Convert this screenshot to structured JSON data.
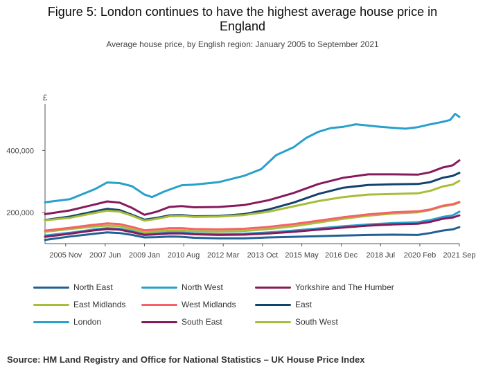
{
  "title_line1": "Figure 5: London continues to have the highest average house price in",
  "title_line2": "England",
  "subtitle": "Average house price, by English region: January 2005 to September 2021",
  "source": "Source: HM Land Registry and Office for National Statistics – UK House Price Index",
  "chart_data": {
    "type": "line",
    "ylabel": "£",
    "ylim": [
      100000,
      550000
    ],
    "y_ticks": [
      200000,
      400000
    ],
    "y_tick_labels": [
      "200,000",
      "400,000"
    ],
    "x_ticks": [
      "2005 Nov",
      "2007 Jun",
      "2009 Jan",
      "2010 Aug",
      "2012 Mar",
      "2013 Oct",
      "2015 May",
      "2016 Dec",
      "2018 Jul",
      "2020 Feb",
      "2021 Sep"
    ],
    "x_tick_values": [
      2005.83,
      2007.42,
      2009.0,
      2010.58,
      2012.17,
      2013.75,
      2015.33,
      2016.92,
      2018.5,
      2020.08,
      2021.67
    ],
    "xlim": [
      2005.0,
      2021.67
    ],
    "grid": false,
    "legend_position": "bottom",
    "series": [
      {
        "name": "North East",
        "color": "#206095",
        "x": [
          2005.0,
          2006.0,
          2007.0,
          2007.5,
          2008.0,
          2008.5,
          2009.0,
          2009.5,
          2010.0,
          2010.5,
          2011.0,
          2012.0,
          2013.0,
          2014.0,
          2015.0,
          2016.0,
          2017.0,
          2018.0,
          2019.0,
          2020.0,
          2020.5,
          2021.0,
          2021.4,
          2021.67
        ],
        "values": [
          112000,
          123000,
          132000,
          136000,
          134000,
          128000,
          120000,
          121000,
          123000,
          122000,
          119000,
          117000,
          117000,
          120000,
          122000,
          124000,
          126000,
          128000,
          129000,
          128000,
          134000,
          142000,
          146000,
          153000
        ]
      },
      {
        "name": "North West",
        "color": "#27a0cc",
        "x": [
          2005.0,
          2006.0,
          2007.0,
          2007.5,
          2008.0,
          2008.5,
          2009.0,
          2009.5,
          2010.0,
          2010.5,
          2011.0,
          2012.0,
          2013.0,
          2014.0,
          2015.0,
          2016.0,
          2017.0,
          2018.0,
          2019.0,
          2020.0,
          2020.5,
          2021.0,
          2021.4,
          2021.67
        ],
        "values": [
          126000,
          135000,
          146000,
          150000,
          148000,
          140000,
          131000,
          133000,
          136000,
          136000,
          133000,
          131000,
          132000,
          136000,
          142000,
          149000,
          156000,
          162000,
          166000,
          169000,
          176000,
          186000,
          191000,
          203000
        ]
      },
      {
        "name": "Yorkshire and The Humber",
        "color": "#871a5b",
        "x": [
          2005.0,
          2006.0,
          2007.0,
          2007.5,
          2008.0,
          2008.5,
          2009.0,
          2009.5,
          2010.0,
          2010.5,
          2011.0,
          2012.0,
          2013.0,
          2014.0,
          2015.0,
          2016.0,
          2017.0,
          2018.0,
          2019.0,
          2020.0,
          2020.5,
          2021.0,
          2021.4,
          2021.67
        ],
        "values": [
          122000,
          132000,
          143000,
          147000,
          145000,
          137000,
          128000,
          130000,
          133000,
          133000,
          130000,
          128000,
          129000,
          133000,
          138000,
          145000,
          152000,
          158000,
          162000,
          164000,
          170000,
          180000,
          184000,
          191000
        ]
      },
      {
        "name": "East Midlands",
        "color": "#a8bd3a",
        "x": [
          2005.0,
          2006.0,
          2007.0,
          2007.5,
          2008.0,
          2008.5,
          2009.0,
          2009.5,
          2010.0,
          2010.5,
          2011.0,
          2012.0,
          2013.0,
          2014.0,
          2015.0,
          2016.0,
          2017.0,
          2018.0,
          2019.0,
          2020.0,
          2020.5,
          2021.0,
          2021.4,
          2021.67
        ],
        "values": [
          138000,
          147000,
          155000,
          158000,
          156000,
          147000,
          136000,
          139000,
          143000,
          143000,
          140000,
          139000,
          141000,
          147000,
          156000,
          168000,
          180000,
          190000,
          197000,
          201000,
          208000,
          220000,
          225000,
          232000
        ]
      },
      {
        "name": "West Midlands",
        "color": "#f66068",
        "x": [
          2005.0,
          2006.0,
          2007.0,
          2007.5,
          2008.0,
          2008.5,
          2009.0,
          2009.5,
          2010.0,
          2010.5,
          2011.0,
          2012.0,
          2013.0,
          2014.0,
          2015.0,
          2016.0,
          2017.0,
          2018.0,
          2019.0,
          2020.0,
          2020.5,
          2021.0,
          2021.4,
          2021.67
        ],
        "values": [
          142000,
          151000,
          161000,
          165000,
          163000,
          154000,
          143000,
          146000,
          150000,
          150000,
          147000,
          146000,
          148000,
          154000,
          163000,
          174000,
          185000,
          194000,
          201000,
          204000,
          210000,
          222000,
          227000,
          234000
        ]
      },
      {
        "name": "East",
        "color": "#12436d",
        "x": [
          2005.0,
          2006.0,
          2007.0,
          2007.5,
          2008.0,
          2008.5,
          2009.0,
          2009.5,
          2010.0,
          2010.5,
          2011.0,
          2012.0,
          2013.0,
          2014.0,
          2015.0,
          2016.0,
          2017.0,
          2018.0,
          2019.0,
          2020.0,
          2020.5,
          2021.0,
          2021.4,
          2021.67
        ],
        "values": [
          176000,
          187000,
          204000,
          212000,
          208000,
          193000,
          177000,
          183000,
          191000,
          192000,
          188000,
          189000,
          195000,
          210000,
          232000,
          260000,
          280000,
          289000,
          291000,
          292000,
          298000,
          312000,
          318000,
          328000
        ]
      },
      {
        "name": "London",
        "color": "#28a0cc",
        "x": [
          2005.0,
          2006.0,
          2007.0,
          2007.5,
          2008.0,
          2008.5,
          2009.0,
          2009.3,
          2009.8,
          2010.5,
          2011.0,
          2012.0,
          2013.0,
          2013.7,
          2014.3,
          2015.0,
          2015.5,
          2016.0,
          2016.5,
          2017.0,
          2017.5,
          2018.0,
          2018.5,
          2019.0,
          2019.5,
          2020.0,
          2020.5,
          2021.0,
          2021.3,
          2021.5,
          2021.67
        ],
        "values": [
          233000,
          243000,
          275000,
          297000,
          295000,
          285000,
          258000,
          250000,
          268000,
          288000,
          290000,
          298000,
          318000,
          340000,
          385000,
          410000,
          440000,
          460000,
          472000,
          476000,
          484000,
          480000,
          476000,
          473000,
          470000,
          475000,
          484000,
          492000,
          498000,
          518000,
          508000
        ]
      },
      {
        "name": "South East",
        "color": "#871a5b",
        "x": [
          2005.0,
          2006.0,
          2007.0,
          2007.5,
          2008.0,
          2008.5,
          2009.0,
          2009.5,
          2010.0,
          2010.5,
          2011.0,
          2012.0,
          2013.0,
          2014.0,
          2015.0,
          2016.0,
          2017.0,
          2018.0,
          2019.0,
          2020.0,
          2020.5,
          2021.0,
          2021.4,
          2021.67
        ],
        "values": [
          195000,
          207000,
          226000,
          236000,
          232000,
          215000,
          193000,
          203000,
          218000,
          221000,
          217000,
          218000,
          224000,
          240000,
          263000,
          292000,
          312000,
          323000,
          323000,
          322000,
          330000,
          345000,
          352000,
          368000
        ]
      },
      {
        "name": "South West",
        "color": "#a8bd3a",
        "x": [
          2005.0,
          2006.0,
          2007.0,
          2007.5,
          2008.0,
          2008.5,
          2009.0,
          2009.5,
          2010.0,
          2010.5,
          2011.0,
          2012.0,
          2013.0,
          2014.0,
          2015.0,
          2016.0,
          2017.0,
          2018.0,
          2019.0,
          2020.0,
          2020.5,
          2021.0,
          2021.4,
          2021.67
        ],
        "values": [
          175000,
          183000,
          199000,
          206000,
          203000,
          190000,
          174000,
          180000,
          188000,
          189000,
          186000,
          187000,
          192000,
          203000,
          220000,
          237000,
          250000,
          258000,
          260000,
          262000,
          270000,
          284000,
          290000,
          302000
        ]
      }
    ]
  }
}
